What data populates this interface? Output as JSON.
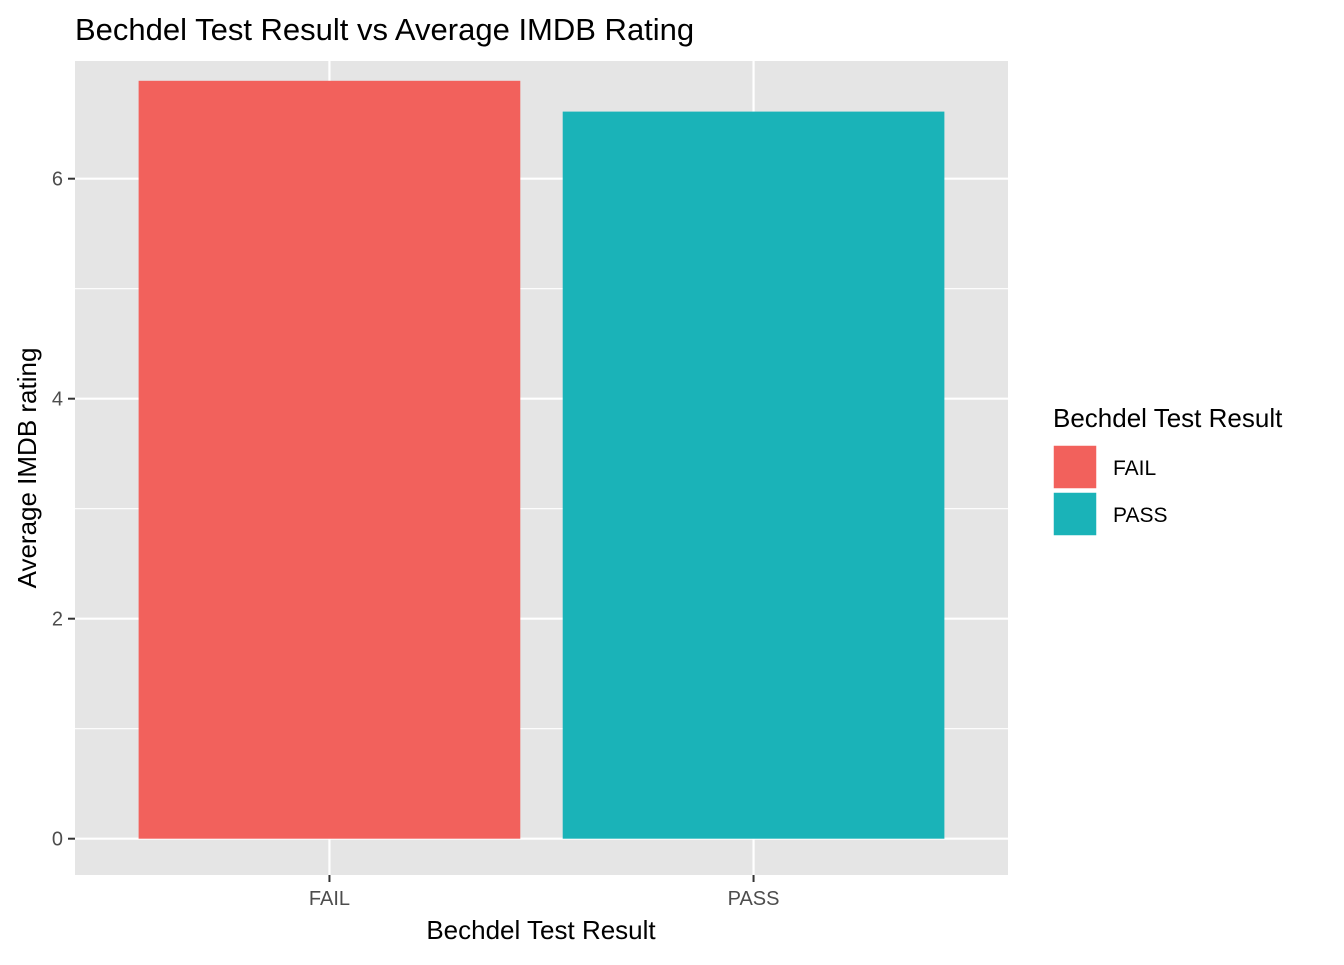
{
  "chart_data": {
    "type": "bar",
    "title": "Bechdel Test Result vs Average IMDB Rating",
    "xlabel": "Bechdel Test Result",
    "ylabel": "Average IMDB rating",
    "categories": [
      "FAIL",
      "PASS"
    ],
    "values": [
      6.89,
      6.61
    ],
    "ylim": [
      -0.33,
      7.07
    ],
    "yticks": [
      0,
      2,
      4,
      6
    ],
    "ytick_labels": [
      "0",
      "2",
      "4",
      "6"
    ],
    "grid": true,
    "legend": {
      "title": "Bechdel Test Result",
      "position": "right",
      "entries": [
        "FAIL",
        "PASS"
      ]
    },
    "colors": {
      "FAIL": "#f2615c",
      "PASS": "#1ab3b8",
      "panel_background": "#e5e5e5",
      "grid": "#ffffff"
    }
  }
}
